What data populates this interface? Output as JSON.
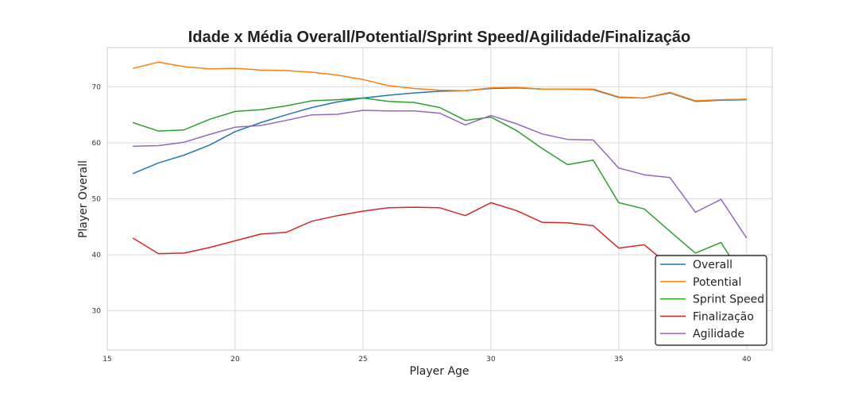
{
  "chart_data": {
    "type": "line",
    "title": "Idade x Média Overall/Potential/Sprint Speed/Agilidade/Finalização",
    "xlabel": "Player Age",
    "ylabel": "Player Overall",
    "xlim": [
      15,
      41
    ],
    "ylim": [
      23,
      77
    ],
    "xticks": [
      15,
      20,
      25,
      30,
      35,
      40
    ],
    "yticks": [
      30,
      40,
      50,
      60,
      70
    ],
    "grid": true,
    "legend_position": "lower-right",
    "x": [
      16,
      17,
      18,
      19,
      20,
      21,
      22,
      23,
      24,
      25,
      26,
      27,
      28,
      29,
      30,
      31,
      32,
      33,
      34,
      35,
      36,
      37,
      38,
      39,
      40
    ],
    "series": [
      {
        "name": "Overall",
        "color": "#1f77b4",
        "values": [
          54.5,
          56.4,
          57.8,
          59.6,
          62.0,
          63.6,
          65.0,
          66.3,
          67.3,
          68.0,
          68.5,
          68.9,
          69.2,
          69.3,
          69.7,
          69.8,
          69.6,
          69.6,
          69.5,
          68.1,
          68.0,
          68.9,
          67.4,
          67.6,
          67.7
        ]
      },
      {
        "name": "Potential",
        "color": "#ff7f0e",
        "values": [
          73.3,
          74.4,
          73.6,
          73.2,
          73.3,
          73.0,
          72.9,
          72.6,
          72.1,
          71.3,
          70.2,
          69.7,
          69.4,
          69.3,
          69.8,
          69.9,
          69.6,
          69.6,
          69.6,
          68.2,
          68.0,
          69.0,
          67.5,
          67.7,
          67.8
        ]
      },
      {
        "name": "Sprint Speed",
        "color": "#2ca02c",
        "values": [
          63.6,
          62.1,
          62.3,
          64.2,
          65.6,
          65.9,
          66.6,
          67.5,
          67.7,
          68.0,
          67.4,
          67.2,
          66.3,
          64.0,
          64.6,
          62.2,
          59.0,
          56.1,
          56.9,
          49.3,
          48.2,
          44.2,
          40.3,
          42.2,
          35.0
        ]
      },
      {
        "name": "Finalização",
        "color": "#d62728",
        "values": [
          43.0,
          40.2,
          40.3,
          41.3,
          42.5,
          43.7,
          44.0,
          46.0,
          47.0,
          47.8,
          48.4,
          48.5,
          48.4,
          47.0,
          49.3,
          47.9,
          45.8,
          45.7,
          45.2,
          41.2,
          41.8,
          38.0,
          34.5,
          33.5,
          31.0
        ]
      },
      {
        "name": "Agilidade",
        "color": "#9467bd",
        "values": [
          59.4,
          59.5,
          60.1,
          61.5,
          62.8,
          63.1,
          64.0,
          65.0,
          65.1,
          65.8,
          65.7,
          65.7,
          65.3,
          63.2,
          64.9,
          63.4,
          61.6,
          60.6,
          60.5,
          55.5,
          54.3,
          53.8,
          47.6,
          49.9,
          43.0
        ]
      }
    ]
  }
}
